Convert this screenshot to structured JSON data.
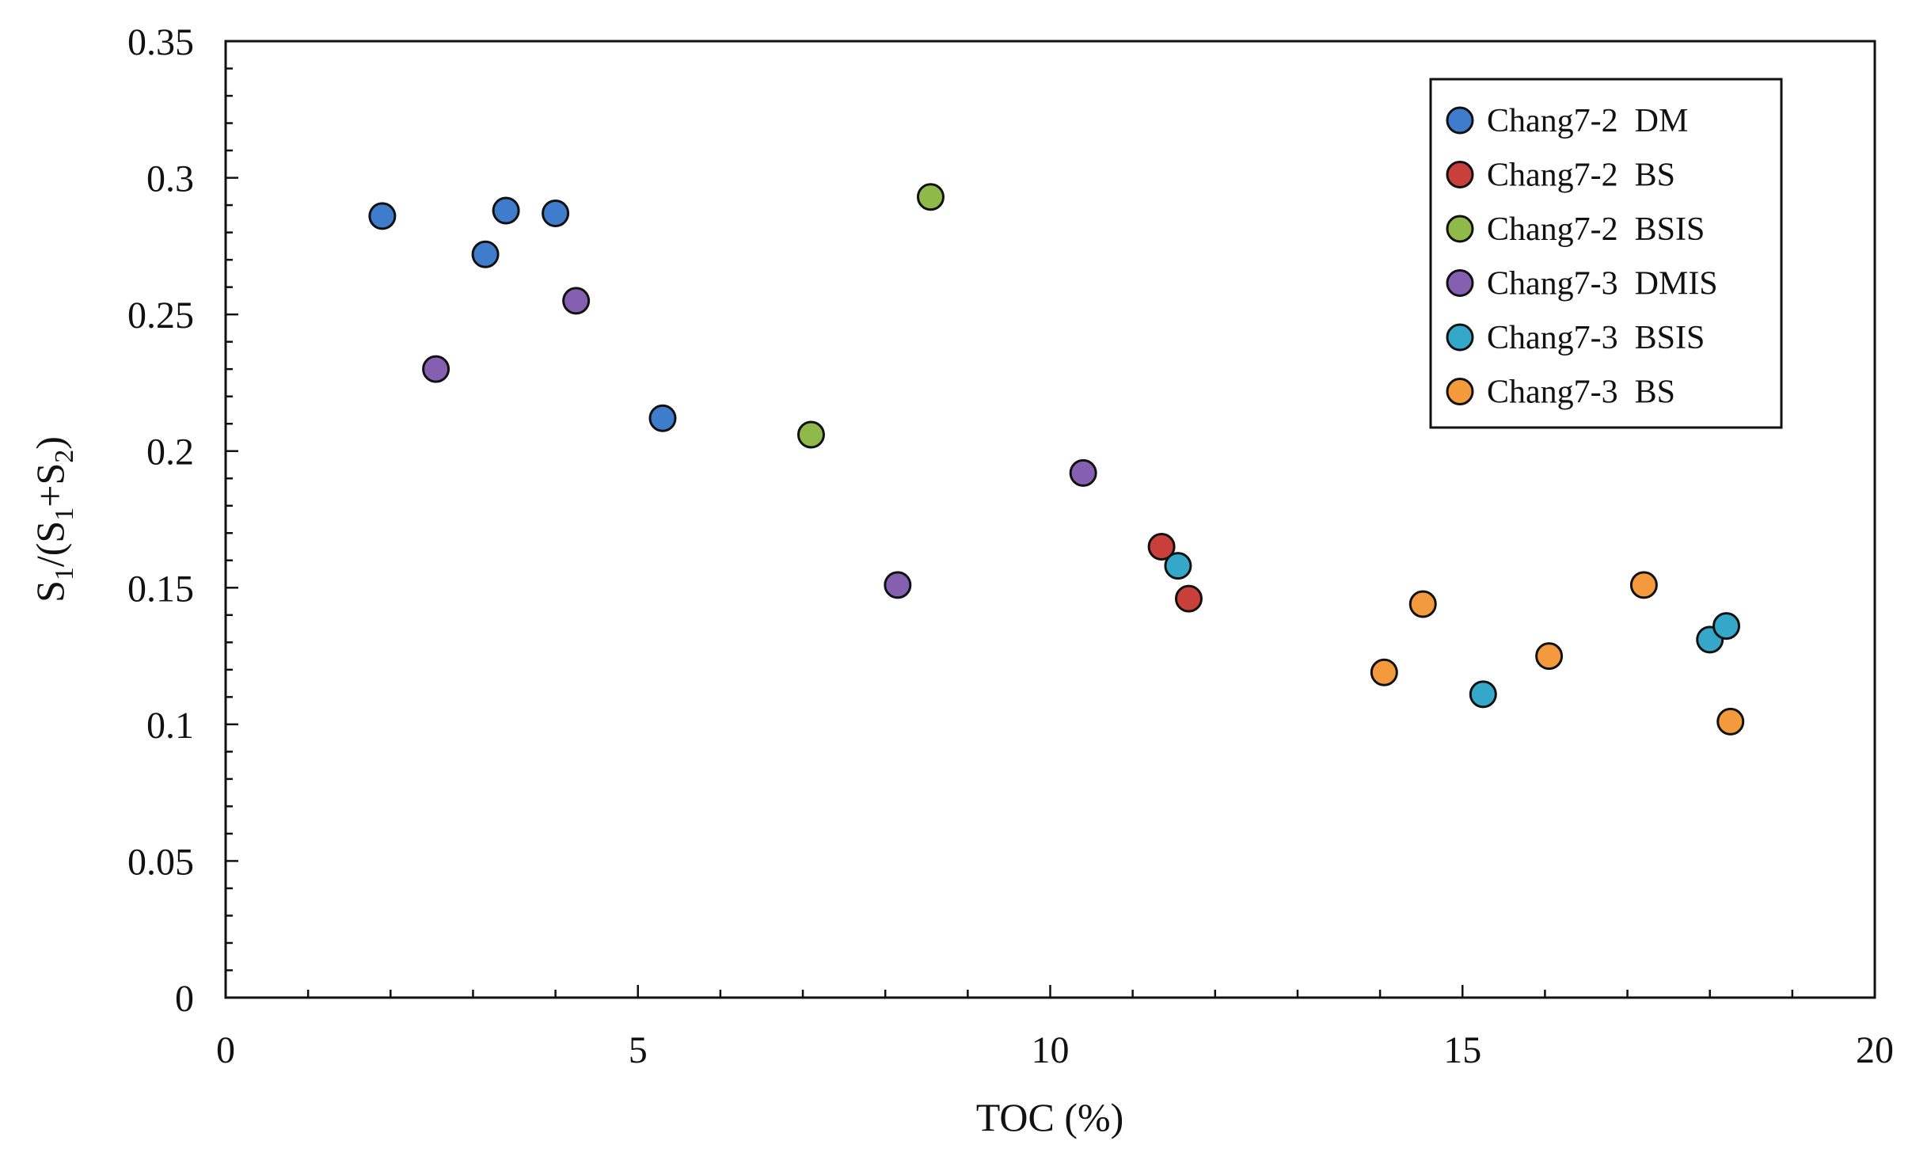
{
  "chart_data": {
    "type": "scatter",
    "title": "",
    "xlabel": "TOC (%)",
    "ylabel": {
      "prefix": "S",
      "sub1": "1",
      "mid": "/(S",
      "sub2": "1",
      "plus": "+S",
      "sub3": "2",
      "close": ")"
    },
    "xlim": [
      0,
      20
    ],
    "ylim": [
      0,
      0.35
    ],
    "x_ticks": [
      0,
      5,
      10,
      15,
      20
    ],
    "x_tick_labels": [
      "0",
      "5",
      "10",
      "15",
      "20"
    ],
    "y_ticks": [
      0,
      0.05,
      0.1,
      0.15,
      0.2,
      0.25,
      0.3,
      0.35
    ],
    "y_tick_labels": [
      "0",
      "0.05",
      "0.1",
      "0.15",
      "0.2",
      "0.25",
      "0.3",
      "0.35"
    ],
    "legend_position": "top-right",
    "series": [
      {
        "name": "Chang7-2  DM",
        "color": "#3f7ccc",
        "points": [
          [
            1.9,
            0.286
          ],
          [
            3.15,
            0.272
          ],
          [
            3.4,
            0.288
          ],
          [
            4.0,
            0.287
          ],
          [
            5.3,
            0.212
          ]
        ]
      },
      {
        "name": "Chang7-2  BS",
        "color": "#c9403a",
        "points": [
          [
            11.35,
            0.165
          ],
          [
            11.68,
            0.146
          ]
        ]
      },
      {
        "name": "Chang7-2  BSIS",
        "color": "#8fba49",
        "points": [
          [
            7.1,
            0.206
          ],
          [
            8.55,
            0.293
          ]
        ]
      },
      {
        "name": "Chang7-3  DMIS",
        "color": "#8560b0",
        "points": [
          [
            2.55,
            0.23
          ],
          [
            4.25,
            0.255
          ],
          [
            8.15,
            0.151
          ],
          [
            10.4,
            0.192
          ]
        ]
      },
      {
        "name": "Chang7-3  BSIS",
        "color": "#35a8c9",
        "points": [
          [
            11.55,
            0.158
          ],
          [
            15.25,
            0.111
          ],
          [
            18.0,
            0.131
          ],
          [
            18.2,
            0.136
          ]
        ]
      },
      {
        "name": "Chang7-3  BS",
        "color": "#f39a3c",
        "points": [
          [
            14.05,
            0.119
          ],
          [
            14.52,
            0.144
          ],
          [
            16.05,
            0.125
          ],
          [
            17.2,
            0.151
          ],
          [
            18.25,
            0.101
          ]
        ]
      }
    ]
  }
}
